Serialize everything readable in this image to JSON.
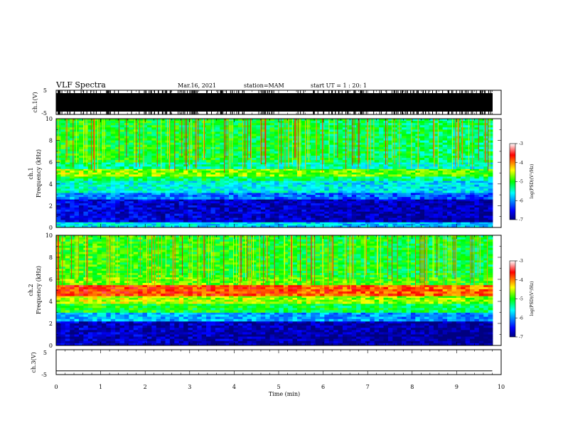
{
  "header": {
    "title": "VLF Spectra",
    "date": "Mar.16, 2021",
    "station": "station=MAM",
    "start": "start UT =  1 : 20: 1"
  },
  "chart_data": [
    {
      "type": "line",
      "ylabel": "ch.1(V)",
      "ylim": [
        -5,
        5
      ],
      "yticks": [
        "5",
        "-5"
      ],
      "signal": "dense impulsive waveform (sferics) saturating roughly ±3 V"
    },
    {
      "type": "heatmap",
      "ylabel": [
        "ch.1",
        "Frequency  (kHz)"
      ],
      "xlim": [
        0,
        10
      ],
      "ylim": [
        0,
        10
      ],
      "yticks": [
        "10",
        "8",
        "6",
        "4",
        "2",
        "0"
      ],
      "colorbar": {
        "label": "log(PSD)(V²/Hz)",
        "ticks": [
          "-3",
          "-4",
          "-5",
          "-6",
          "-7"
        ],
        "range": [
          -7,
          -3
        ]
      },
      "bands": [
        {
          "f": [
            0.0,
            0.5
          ],
          "logpsd": -5.6
        },
        {
          "f": [
            0.5,
            2.6
          ],
          "logpsd": -6.6
        },
        {
          "f": [
            2.6,
            3.2
          ],
          "logpsd": -6.0
        },
        {
          "f": [
            3.2,
            4.3
          ],
          "logpsd": -5.5
        },
        {
          "f": [
            4.3,
            4.7
          ],
          "logpsd": -5.1
        },
        {
          "f": [
            4.7,
            5.4
          ],
          "logpsd": -4.6
        },
        {
          "f": [
            5.4,
            6.0
          ],
          "logpsd": -5.3
        },
        {
          "f": [
            6.0,
            10.0
          ],
          "logpsd": -5.0
        }
      ]
    },
    {
      "type": "heatmap",
      "ylabel": [
        "ch.2",
        "Frequency  (kHz)"
      ],
      "xlim": [
        0,
        10
      ],
      "ylim": [
        0,
        10
      ],
      "yticks": [
        "10",
        "8",
        "6",
        "4",
        "2",
        "0"
      ],
      "colorbar": {
        "label": "log(PSD)(V²/Hz)",
        "ticks": [
          "-3",
          "-4",
          "-5",
          "-6",
          "-7"
        ],
        "range": [
          -7,
          -3
        ]
      },
      "bands": [
        {
          "f": [
            0.0,
            2.2
          ],
          "logpsd": -6.7
        },
        {
          "f": [
            2.2,
            3.0
          ],
          "logpsd": -5.8
        },
        {
          "f": [
            3.0,
            3.8
          ],
          "logpsd": -5.0
        },
        {
          "f": [
            3.8,
            4.5
          ],
          "logpsd": -4.5
        },
        {
          "f": [
            4.5,
            5.5
          ],
          "logpsd": -3.7
        },
        {
          "f": [
            5.5,
            6.2
          ],
          "logpsd": -4.7
        },
        {
          "f": [
            6.2,
            10.0
          ],
          "logpsd": -4.9
        }
      ]
    },
    {
      "type": "line",
      "ylabel": "ch.3(V)",
      "xlabel": "Time  (min)",
      "xlim": [
        0,
        10
      ],
      "xticks": [
        "0",
        "1",
        "2",
        "3",
        "4",
        "5",
        "6",
        "7",
        "8",
        "9",
        "10"
      ],
      "ylim": [
        -5,
        5
      ],
      "yticks": [
        "5",
        "-5"
      ],
      "x": [
        0,
        9.8
      ],
      "y": [
        -3.5,
        -3.5
      ]
    }
  ]
}
